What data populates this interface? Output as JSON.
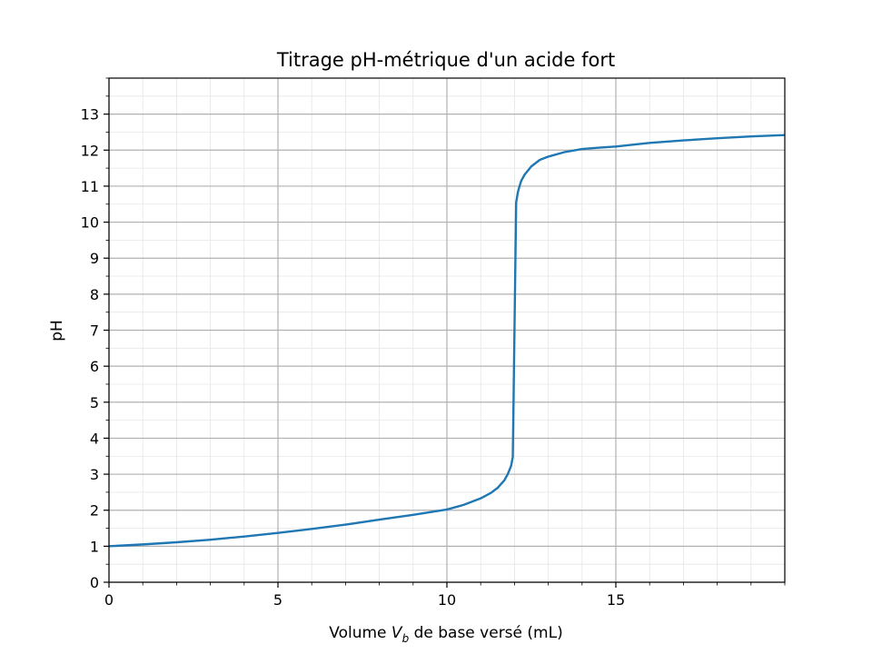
{
  "chart_data": {
    "type": "line",
    "title": "Titrage pH-métrique d'un acide fort",
    "xlabel": {
      "prefix": "Volume ",
      "var": "V",
      "sub": "b",
      "suffix": " de base versé (mL)"
    },
    "ylabel": "pH",
    "xlim": [
      0,
      20
    ],
    "ylim": [
      0,
      14
    ],
    "x_ticks": [
      0,
      5,
      10,
      15
    ],
    "y_ticks": [
      0,
      1,
      2,
      3,
      4,
      5,
      6,
      7,
      8,
      9,
      10,
      11,
      12,
      13
    ],
    "x_minor_step": 1,
    "y_minor_step": 0.5,
    "grid": true,
    "series": [
      {
        "color": "#1f77b4",
        "x": [
          0,
          1,
          2,
          3,
          4,
          5,
          6,
          7,
          8,
          9,
          10,
          10.5,
          11,
          11.3,
          11.5,
          11.7,
          11.8,
          11.9,
          11.95,
          12.0,
          12.05,
          12.1,
          12.15,
          12.2,
          12.3,
          12.5,
          12.75,
          13,
          13.5,
          14,
          14.5,
          15,
          16,
          17,
          18,
          19,
          20
        ],
        "y": [
          1.0,
          1.05,
          1.11,
          1.18,
          1.27,
          1.37,
          1.48,
          1.6,
          1.74,
          1.87,
          2.02,
          2.15,
          2.33,
          2.48,
          2.62,
          2.83,
          3.0,
          3.23,
          3.48,
          7.0,
          10.55,
          10.83,
          11.0,
          11.15,
          11.32,
          11.55,
          11.73,
          11.82,
          11.95,
          12.03,
          12.07,
          12.1,
          12.2,
          12.27,
          12.33,
          12.38,
          12.42
        ]
      }
    ]
  }
}
